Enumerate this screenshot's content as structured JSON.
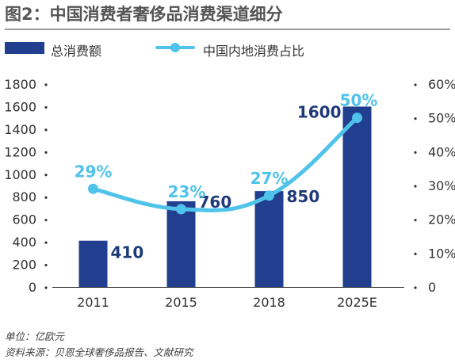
{
  "header": {
    "title": "图2：中国消费者奢侈品消费渠道细分"
  },
  "legend": {
    "bar_label": "总消费额",
    "line_label": "中国内地消费占比"
  },
  "footer": {
    "unit": "单位：亿欧元",
    "source": "资料来源：贝恩全球奢侈品报告、文献研究"
  },
  "colors": {
    "bar": "#223f8f",
    "line": "#4fc3ea",
    "bar_label": "#1f3a78",
    "line_label": "#4fc3ea"
  },
  "chart_data": {
    "type": "bar",
    "categories": [
      "2011",
      "2015",
      "2018",
      "2025E"
    ],
    "series": [
      {
        "name": "总消费额",
        "type": "bar",
        "axis": "left",
        "values": [
          410,
          760,
          850,
          1600
        ],
        "labels": [
          "410",
          "760",
          "850",
          "1600"
        ]
      },
      {
        "name": "中国内地消费占比",
        "type": "line",
        "axis": "right",
        "values": [
          29,
          23,
          27,
          50
        ],
        "labels": [
          "29%",
          "23%",
          "27%",
          "50%"
        ]
      }
    ],
    "y_left": {
      "min": 0,
      "max": 1800,
      "ticks": [
        "0",
        "200",
        "400",
        "600",
        "800",
        "1000",
        "1200",
        "1400",
        "1600",
        "1800"
      ]
    },
    "y_right": {
      "min": 0,
      "max": 60,
      "ticks": [
        "0",
        "10%",
        "20%",
        "30%",
        "40%",
        "50%",
        "60%"
      ]
    },
    "grid": false,
    "legend_position": "top"
  }
}
